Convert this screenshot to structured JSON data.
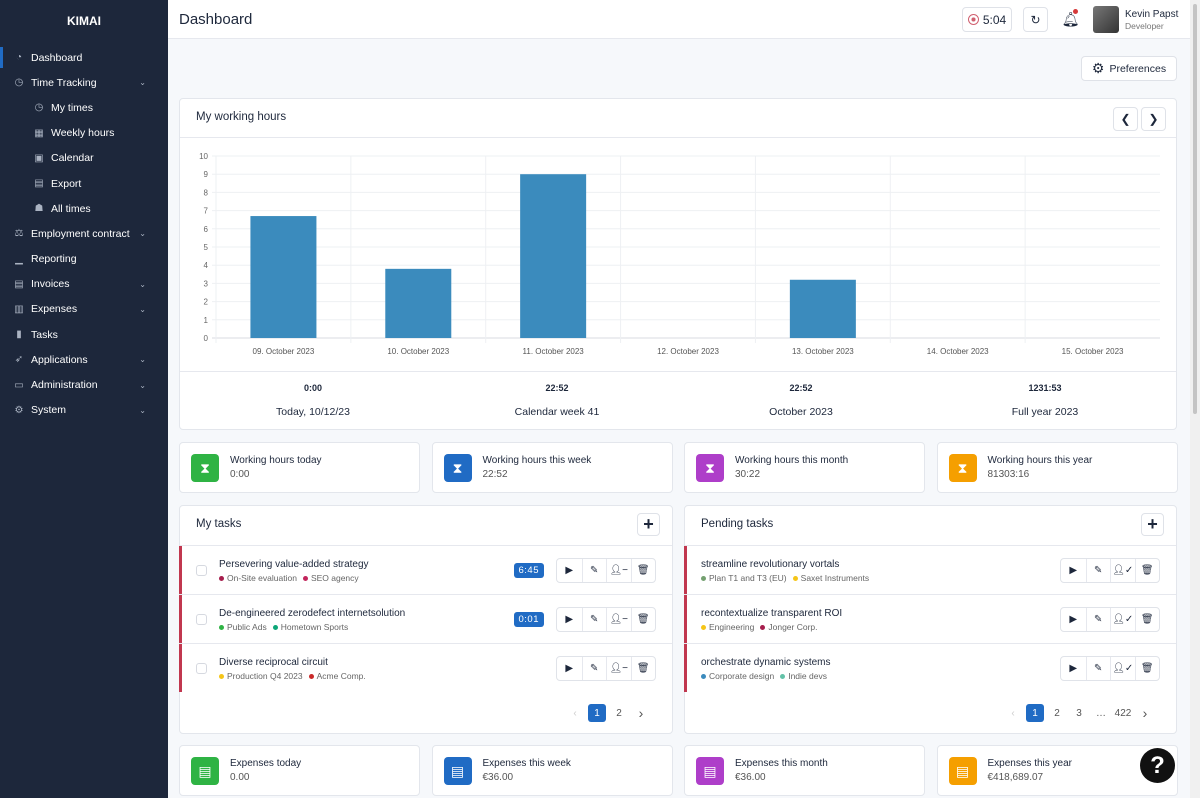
{
  "app": {
    "logo": "KIMAI"
  },
  "sidebar": {
    "items": [
      {
        "label": "Dashboard",
        "icon": "dashboard-icon",
        "glyph": "◔",
        "active": true
      },
      {
        "label": "Time Tracking",
        "icon": "clock-icon",
        "glyph": "◷",
        "chevron": true
      },
      {
        "label": "My times",
        "icon": "clock-icon",
        "glyph": "◷",
        "sub": true
      },
      {
        "label": "Weekly hours",
        "icon": "grid-icon",
        "glyph": "▦",
        "sub": true
      },
      {
        "label": "Calendar",
        "icon": "calendar-icon",
        "glyph": "▣",
        "sub": true
      },
      {
        "label": "Export",
        "icon": "export-icon",
        "glyph": "▤",
        "sub": true
      },
      {
        "label": "All times",
        "icon": "users-clock-icon",
        "glyph": "☗",
        "sub": true
      },
      {
        "label": "Employment contract",
        "icon": "scale-icon",
        "glyph": "⚖",
        "chevron": true
      },
      {
        "label": "Reporting",
        "icon": "chart-icon",
        "glyph": "▁",
        "chevron": false
      },
      {
        "label": "Invoices",
        "icon": "invoice-icon",
        "glyph": "▤",
        "chevron": true
      },
      {
        "label": "Expenses",
        "icon": "receipt-icon",
        "glyph": "▥",
        "chevron": true
      },
      {
        "label": "Tasks",
        "icon": "clipboard-icon",
        "glyph": "▮"
      },
      {
        "label": "Applications",
        "icon": "rocket-icon",
        "glyph": "➶",
        "chevron": true
      },
      {
        "label": "Administration",
        "icon": "toolbox-icon",
        "glyph": "▭",
        "chevron": true
      },
      {
        "label": "System",
        "icon": "gear-icon",
        "glyph": "⚙",
        "chevron": true
      }
    ]
  },
  "header": {
    "title": "Dashboard",
    "timer": "5:04",
    "user_name": "Kevin Papst",
    "user_role": "Developer"
  },
  "preferences_label": "Preferences",
  "working_hours": {
    "title": "My working hours",
    "summary": [
      {
        "value": "0:00",
        "label": "Today, 10/12/23"
      },
      {
        "value": "22:52",
        "label": "Calendar week 41"
      },
      {
        "value": "22:52",
        "label": "October 2023"
      },
      {
        "value": "1231:53",
        "label": "Full year 2023"
      }
    ]
  },
  "chart_data": {
    "type": "bar",
    "categories": [
      "09. October 2023",
      "10. October 2023",
      "11. October 2023",
      "12. October 2023",
      "13. October 2023",
      "14. October 2023",
      "15. October 2023"
    ],
    "values": [
      6.7,
      3.8,
      9.0,
      0,
      3.2,
      0,
      0
    ],
    "ylim": [
      0,
      10
    ],
    "yticks": [
      0,
      1,
      2,
      3,
      4,
      5,
      6,
      7,
      8,
      9,
      10
    ],
    "grid": true,
    "color": "#3b8bbd"
  },
  "stats": [
    {
      "label": "Working hours today",
      "value": "0:00",
      "color": "#2fb344"
    },
    {
      "label": "Working hours this week",
      "value": "22:52",
      "color": "#206bc4"
    },
    {
      "label": "Working hours this month",
      "value": "30:22",
      "color": "#ae3ec9"
    },
    {
      "label": "Working hours this year",
      "value": "81303:16",
      "color": "#f59f00"
    }
  ],
  "my_tasks": {
    "title": "My tasks",
    "items": [
      {
        "title": "Persevering value-added strategy",
        "tags": [
          {
            "name": "On-Site evaluation",
            "color": "#a61e4d"
          },
          {
            "name": "SEO agency",
            "color": "#c2255c"
          }
        ],
        "badge": "6:45"
      },
      {
        "title": "De-engineered zerodefect internetsolution",
        "tags": [
          {
            "name": "Public Ads",
            "color": "#2fb344"
          },
          {
            "name": "Hometown Sports",
            "color": "#0ca678"
          }
        ],
        "badge": "0:01"
      },
      {
        "title": "Diverse reciprocal circuit",
        "tags": [
          {
            "name": "Production Q4 2023",
            "color": "#f5c518"
          },
          {
            "name": "Acme Comp.",
            "color": "#c92a2a"
          }
        ]
      }
    ],
    "pages": [
      "1",
      "2"
    ]
  },
  "pending_tasks": {
    "title": "Pending tasks",
    "items": [
      {
        "title": "streamline revolutionary vortals",
        "tags": [
          {
            "name": "Plan T1 and T3 (EU)",
            "color": "#74a070"
          },
          {
            "name": "Saxet Instruments",
            "color": "#f5c518"
          }
        ]
      },
      {
        "title": "recontextualize transparent ROI",
        "tags": [
          {
            "name": "Engineering",
            "color": "#f5c518"
          },
          {
            "name": "Jonger Corp.",
            "color": "#a61e4d"
          }
        ]
      },
      {
        "title": "orchestrate dynamic systems",
        "tags": [
          {
            "name": "Corporate design",
            "color": "#3b8bbd"
          },
          {
            "name": "Indie devs",
            "color": "#63c2a8"
          }
        ]
      }
    ],
    "pages": [
      "1",
      "2",
      "3",
      "…",
      "422"
    ]
  },
  "expenses": [
    {
      "label": "Expenses today",
      "value": "0.00",
      "color": "#2fb344"
    },
    {
      "label": "Expenses this week",
      "value": "€36.00",
      "color": "#206bc4"
    },
    {
      "label": "Expenses this month",
      "value": "€36.00",
      "color": "#ae3ec9"
    },
    {
      "label": "Expenses this year",
      "value": "€418,689.07",
      "color": "#f59f00"
    }
  ],
  "help_label": "?"
}
